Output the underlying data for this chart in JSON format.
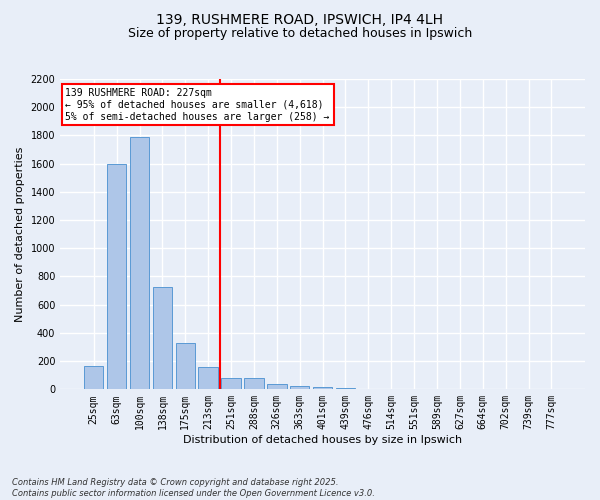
{
  "title": "139, RUSHMERE ROAD, IPSWICH, IP4 4LH",
  "subtitle": "Size of property relative to detached houses in Ipswich",
  "xlabel": "Distribution of detached houses by size in Ipswich",
  "ylabel": "Number of detached properties",
  "bar_values": [
    165,
    1600,
    1790,
    725,
    330,
    160,
    80,
    80,
    40,
    25,
    15,
    10,
    0,
    0,
    0,
    0,
    0,
    0,
    0,
    0,
    0
  ],
  "bar_labels": [
    "25sqm",
    "63sqm",
    "100sqm",
    "138sqm",
    "175sqm",
    "213sqm",
    "251sqm",
    "288sqm",
    "326sqm",
    "363sqm",
    "401sqm",
    "439sqm",
    "476sqm",
    "514sqm",
    "551sqm",
    "589sqm",
    "627sqm",
    "664sqm",
    "702sqm",
    "739sqm",
    "777sqm"
  ],
  "bar_color": "#aec6e8",
  "bar_edgecolor": "#5a9ad5",
  "vline_x": 5.5,
  "vline_color": "red",
  "annotation_text": "139 RUSHMERE ROAD: 227sqm\n← 95% of detached houses are smaller (4,618)\n5% of semi-detached houses are larger (258) →",
  "annotation_box_color": "white",
  "annotation_box_edgecolor": "red",
  "ylim": [
    0,
    2200
  ],
  "yticks": [
    0,
    200,
    400,
    600,
    800,
    1000,
    1200,
    1400,
    1600,
    1800,
    2000,
    2200
  ],
  "bg_color": "#e8eef8",
  "grid_color": "white",
  "footnote": "Contains HM Land Registry data © Crown copyright and database right 2025.\nContains public sector information licensed under the Open Government Licence v3.0.",
  "title_fontsize": 10,
  "subtitle_fontsize": 9,
  "axis_label_fontsize": 8,
  "tick_fontsize": 7,
  "annot_fontsize": 7,
  "footnote_fontsize": 6
}
